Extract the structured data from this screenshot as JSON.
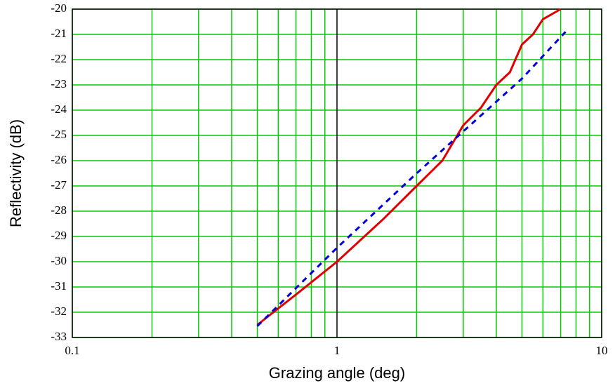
{
  "chart_data": {
    "type": "line",
    "xlabel": "Grazing angle (deg)",
    "ylabel": "Reflectivity (dB)",
    "xscale": "log",
    "grid": true,
    "grid_color": "#00cc00",
    "xlim": [
      0.1,
      10
    ],
    "xticks": [
      0.1,
      1,
      10
    ],
    "xminor_ticks": [
      0.2,
      0.3,
      0.4,
      0.5,
      0.6,
      0.7,
      0.8,
      0.9,
      2,
      3,
      4,
      5,
      6,
      7,
      8,
      9
    ],
    "ylim": [
      -33,
      -20
    ],
    "yticks": [
      -20,
      -21,
      -22,
      -23,
      -24,
      -25,
      -26,
      -27,
      -28,
      -29,
      -30,
      -31,
      -32,
      -33
    ],
    "series": [
      {
        "color": "#e00000",
        "dash": false,
        "x": [
          0.5,
          0.7,
          1,
          1.5,
          2,
          2.5,
          3,
          3.5,
          4,
          4.5,
          5,
          5.5,
          6,
          7
        ],
        "values": [
          -32.5,
          -31.3,
          -30,
          -28.3,
          -27,
          -26,
          -24.6,
          -23.9,
          -23,
          -22.5,
          -21.4,
          -21,
          -20.4,
          -20
        ]
      },
      {
        "color": "#0000dd",
        "dash": true,
        "x": [
          0.5,
          1,
          2,
          5,
          7.3
        ],
        "values": [
          -32.55,
          -29.45,
          -26.5,
          -22.75,
          -20.9
        ]
      }
    ]
  }
}
